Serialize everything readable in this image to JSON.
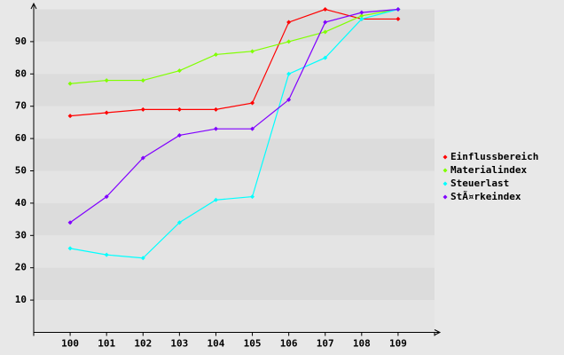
{
  "chart_data": {
    "type": "line",
    "categories": [
      "100",
      "101",
      "102",
      "103",
      "104",
      "105",
      "106",
      "107",
      "108",
      "109"
    ],
    "series": [
      {
        "name": "Einflussbereich",
        "color": "#ff0000",
        "values": [
          67,
          68,
          69,
          69,
          69,
          71,
          96,
          100,
          97,
          97
        ]
      },
      {
        "name": "Materialindex",
        "color": "#80ff00",
        "values": [
          77,
          78,
          78,
          81,
          86,
          87,
          90,
          93,
          98,
          100
        ]
      },
      {
        "name": "Steuerlast",
        "color": "#00ffff",
        "values": [
          26,
          24,
          23,
          34,
          41,
          42,
          80,
          85,
          97,
          100
        ]
      },
      {
        "name": "StÃ¤rkeindex",
        "color": "#8000ff",
        "values": [
          34,
          42,
          54,
          61,
          63,
          63,
          72,
          96,
          99,
          100
        ]
      }
    ],
    "ylim": [
      0,
      100
    ],
    "yticks": [
      10,
      20,
      30,
      40,
      50,
      60,
      70,
      80,
      90
    ],
    "grid": true,
    "legend": "right"
  }
}
